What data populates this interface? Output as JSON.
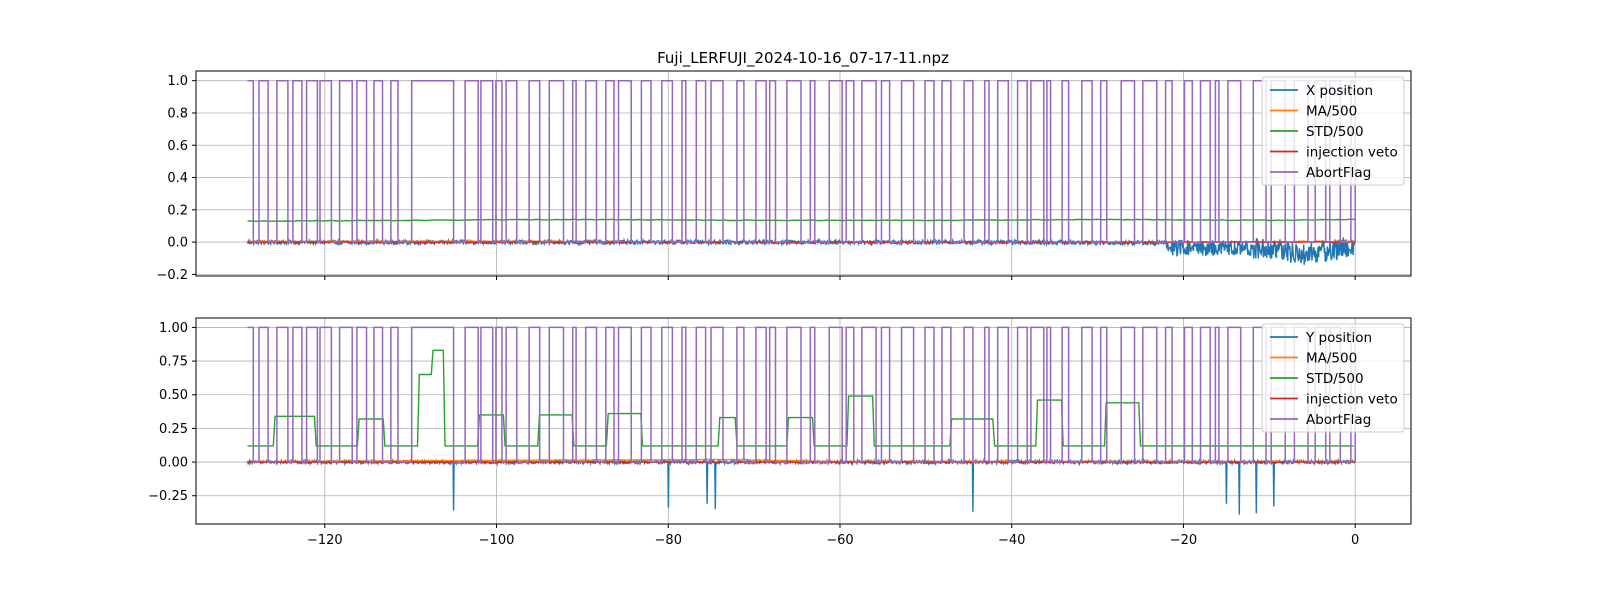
{
  "figure": {
    "title": "Fuji_LERFUJI_2024-10-16_07-17-11.npz"
  },
  "chart_data": [
    {
      "type": "line",
      "title": "Fuji_LERFUJI_2024-10-16_07-17-11.npz",
      "xlabel": "",
      "ylabel": "",
      "xlim": [
        -135,
        6.5
      ],
      "ylim": [
        -0.21,
        1.06
      ],
      "xticks": [
        -120,
        -100,
        -80,
        -60,
        -40,
        -20,
        0
      ],
      "xtick_labels_visible": false,
      "yticks": [
        -0.2,
        0.0,
        0.2,
        0.4,
        0.6,
        0.8,
        1.0
      ],
      "ytick_labels": [
        "−0.2",
        "0.0",
        "0.2",
        "0.4",
        "0.6",
        "0.8",
        "1.0"
      ],
      "grid": true,
      "legend_placement": "upper right",
      "series": [
        {
          "name": "X position",
          "color": "#1f77b4",
          "baseline": 0.0,
          "description_points": [
            [
              -129,
              -0.01
            ],
            [
              -60,
              0.0
            ],
            [
              -40,
              -0.02
            ],
            [
              -20,
              -0.07
            ],
            [
              -10,
              -0.08
            ],
            [
              -6,
              -0.15
            ],
            [
              0,
              -0.05
            ]
          ]
        },
        {
          "name": "MA/500",
          "color": "#ff7f0e",
          "points": [
            [
              -129,
              0.005
            ],
            [
              -100,
              0.005
            ],
            [
              -60,
              0.0
            ],
            [
              -20,
              0.0
            ],
            [
              0,
              0.005
            ]
          ]
        },
        {
          "name": "STD/500",
          "color": "#2ca02c",
          "points": [
            [
              -129,
              0.13
            ],
            [
              -110,
              0.135
            ],
            [
              -90,
              0.14
            ],
            [
              -70,
              0.135
            ],
            [
              -50,
              0.135
            ],
            [
              -30,
              0.14
            ],
            [
              -10,
              0.135
            ],
            [
              0,
              0.14
            ]
          ]
        },
        {
          "name": "injection veto",
          "color": "#d62728",
          "points": [
            [
              -129,
              0.0
            ],
            [
              0,
              0.0
            ]
          ]
        },
        {
          "name": "AbortFlag",
          "color": "#9467bd",
          "high_intervals": [
            [
              -129,
              -128
            ],
            [
              -110.5,
              -105
            ],
            [
              -85,
              -80
            ],
            [
              -70,
              -65
            ],
            [
              -50,
              -45
            ],
            [
              -30,
              -28
            ]
          ],
          "levels": [
            0,
            1
          ]
        }
      ]
    },
    {
      "type": "line",
      "title": "",
      "xlabel": "",
      "ylabel": "",
      "xlim": [
        -135,
        6.5
      ],
      "ylim": [
        -0.46,
        1.07
      ],
      "xticks": [
        -120,
        -100,
        -80,
        -60,
        -40,
        -20,
        0
      ],
      "xtick_labels": [
        "−120",
        "−100",
        "−80",
        "−60",
        "−40",
        "−20",
        "0"
      ],
      "yticks": [
        -0.25,
        0.0,
        0.25,
        0.5,
        0.75,
        1.0
      ],
      "ytick_labels": [
        "−0.25",
        "0.00",
        "0.25",
        "0.50",
        "0.75",
        "1.00"
      ],
      "grid": true,
      "legend_placement": "upper right",
      "series": [
        {
          "name": "Y position",
          "color": "#1f77b4",
          "baseline": 0.0,
          "spikes": [
            [
              -105,
              -0.36
            ],
            [
              -80,
              -0.34
            ],
            [
              -75.5,
              -0.31
            ],
            [
              -74.5,
              -0.35
            ],
            [
              -44.5,
              -0.37
            ],
            [
              -15,
              -0.31
            ],
            [
              -13.5,
              -0.39
            ],
            [
              -11.5,
              -0.38
            ],
            [
              -9.5,
              -0.33
            ]
          ]
        },
        {
          "name": "MA/500",
          "color": "#ff7f0e",
          "points": [
            [
              -129,
              0.005
            ],
            [
              -73,
              0.02
            ],
            [
              -60,
              0.005
            ],
            [
              0,
              0.005
            ]
          ]
        },
        {
          "name": "STD/500",
          "color": "#2ca02c",
          "points": [
            [
              -129,
              0.12
            ],
            [
              -126,
              0.34
            ],
            [
              -121,
              0.12
            ],
            [
              -116,
              0.32
            ],
            [
              -113,
              0.12
            ],
            [
              -109,
              0.65
            ],
            [
              -107.5,
              0.83
            ],
            [
              -106,
              0.12
            ],
            [
              -102,
              0.35
            ],
            [
              -99,
              0.12
            ],
            [
              -95,
              0.35
            ],
            [
              -91,
              0.12
            ],
            [
              -87,
              0.36
            ],
            [
              -83,
              0.12
            ],
            [
              -74,
              0.33
            ],
            [
              -72,
              0.12
            ],
            [
              -66,
              0.33
            ],
            [
              -63,
              0.12
            ],
            [
              -59,
              0.49
            ],
            [
              -56,
              0.12
            ],
            [
              -47,
              0.32
            ],
            [
              -42,
              0.12
            ],
            [
              -37,
              0.46
            ],
            [
              -34,
              0.12
            ],
            [
              -29,
              0.44
            ],
            [
              -25,
              0.12
            ],
            [
              0,
              0.12
            ]
          ]
        },
        {
          "name": "injection veto",
          "color": "#d62728",
          "points": [
            [
              -129,
              0.0
            ],
            [
              0,
              0.0
            ]
          ]
        },
        {
          "name": "AbortFlag",
          "color": "#9467bd",
          "high_intervals": [
            [
              -129,
              -128
            ],
            [
              -110.5,
              -105
            ],
            [
              -85,
              -80
            ],
            [
              -70,
              -65
            ],
            [
              -50,
              -45
            ],
            [
              -30,
              -28
            ]
          ],
          "levels": [
            0,
            1
          ]
        }
      ]
    }
  ]
}
